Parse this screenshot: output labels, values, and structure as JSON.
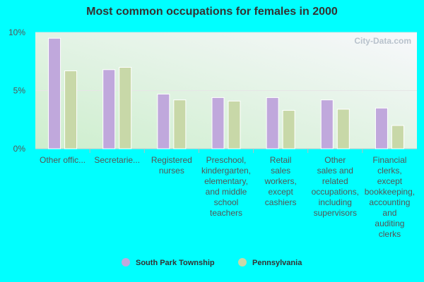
{
  "chart_data": {
    "type": "bar",
    "title": "Most common occupations for females in 2000",
    "categories": [
      "Other offic...",
      "Secretarie...",
      "Registered nurses",
      "Preschool, kindergarten, elementary, and middle school teachers",
      "Retail sales workers, except cashiers",
      "Other sales and related occupations, including supervisors",
      "Financial clerks, except bookkeeping, accounting and auditing clerks"
    ],
    "category_lines": [
      [
        "Other offic..."
      ],
      [
        "Secretarie..."
      ],
      [
        "Registered",
        "nurses"
      ],
      [
        "Preschool,",
        "kindergarten,",
        "elementary,",
        "and middle",
        "school",
        "teachers"
      ],
      [
        "Retail",
        "sales",
        "workers,",
        "except",
        "cashiers"
      ],
      [
        "Other",
        "sales and",
        "related",
        "occupations,",
        "including",
        "supervisors"
      ],
      [
        "Financial",
        "clerks,",
        "except",
        "bookkeeping,",
        "accounting",
        "and",
        "auditing",
        "clerks"
      ]
    ],
    "series": [
      {
        "name": "South Park Township",
        "color": "#c0a8dc",
        "values": [
          9.5,
          6.8,
          4.7,
          4.4,
          4.4,
          4.2,
          3.5
        ]
      },
      {
        "name": "Pennsylvania",
        "color": "#c8d8a8",
        "values": [
          6.7,
          7.0,
          4.2,
          4.1,
          3.3,
          3.4,
          2.0
        ]
      }
    ],
    "ylim": [
      0,
      10
    ],
    "yticks": [
      {
        "value": 0,
        "label": "0%"
      },
      {
        "value": 5,
        "label": "5%"
      },
      {
        "value": 10,
        "label": "10%"
      }
    ],
    "xlabel": "",
    "ylabel": "",
    "legend_position": "bottom-center",
    "watermark": "City-Data.com"
  }
}
